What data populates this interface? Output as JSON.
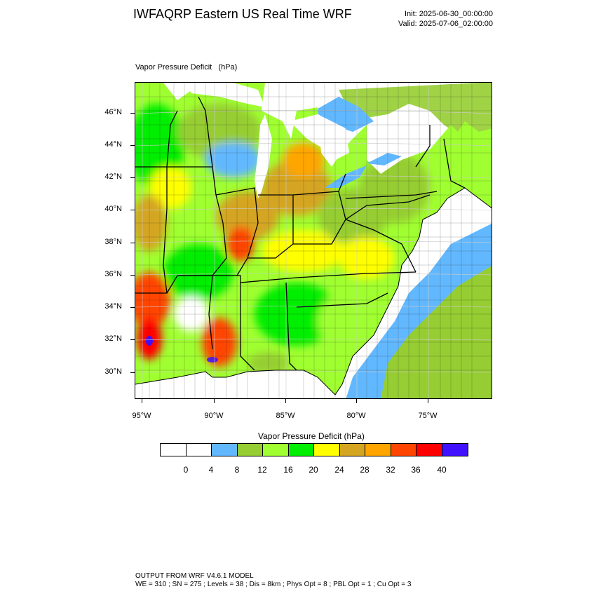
{
  "header": {
    "title": "IWFAQRP Eastern US Real Time WRF",
    "init": "Init: 2025-06-30_00:00:00",
    "valid": "Valid: 2025-07-06_02:00:00"
  },
  "map": {
    "field_label": "Vapor Pressure Deficit",
    "field_units": "(hPa)",
    "lat_labels": [
      "46°N",
      "44°N",
      "42°N",
      "40°N",
      "38°N",
      "36°N",
      "34°N",
      "32°N",
      "30°N"
    ],
    "lon_labels": [
      "95°W",
      "90°W",
      "85°W",
      "80°W",
      "75°W"
    ],
    "water_color": "#ffffff",
    "land_dominant_colors": [
      "#00ee00",
      "#a0ff30",
      "#ffff00",
      "#d4a520",
      "#ffa500",
      "#ff4500",
      "#ff0000",
      "#4010ff",
      "#62b8ff",
      "#96cd32"
    ]
  },
  "colorbar": {
    "title": "Vapor Pressure Deficit  (hPa)",
    "colors": [
      "#ffffff",
      "#ffffff",
      "#62b8ff",
      "#96cd32",
      "#a0ff30",
      "#00ee00",
      "#ffff00",
      "#d4a520",
      "#ffa500",
      "#ff4500",
      "#ff0000",
      "#4010ff"
    ],
    "labels": [
      "0",
      "4",
      "8",
      "12",
      "16",
      "20",
      "24",
      "28",
      "32",
      "36",
      "40"
    ]
  },
  "footer": {
    "line1": "OUTPUT FROM WRF V4.6.1 MODEL",
    "line2": "WE = 310 ; SN = 275 ; Levels = 38 ; Dis = 8km ; Phys Opt = 8 ; PBL Opt = 1 ; Cu Opt = 3"
  }
}
